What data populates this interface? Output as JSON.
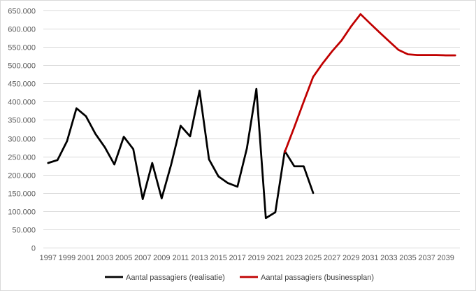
{
  "chart_data": {
    "type": "line",
    "title": "",
    "xlabel": "",
    "ylabel": "",
    "ylim": [
      0,
      650000
    ],
    "y_ticks": [
      {
        "value": 0,
        "label": "0"
      },
      {
        "value": 50000,
        "label": "50.000"
      },
      {
        "value": 100000,
        "label": "100.000"
      },
      {
        "value": 150000,
        "label": "150.000"
      },
      {
        "value": 200000,
        "label": "200.000"
      },
      {
        "value": 250000,
        "label": "250.000"
      },
      {
        "value": 300000,
        "label": "300.000"
      },
      {
        "value": 350000,
        "label": "350.000"
      },
      {
        "value": 400000,
        "label": "400.000"
      },
      {
        "value": 450000,
        "label": "450.000"
      },
      {
        "value": 500000,
        "label": "500.000"
      },
      {
        "value": 550000,
        "label": "550.000"
      },
      {
        "value": 600000,
        "label": "600.000"
      },
      {
        "value": 650000,
        "label": "650.000"
      }
    ],
    "x_range": [
      1997,
      2040
    ],
    "x_tick_labels": [
      "1997",
      "1999",
      "2001",
      "2003",
      "2005",
      "2007",
      "2009",
      "2011",
      "2013",
      "2015",
      "2017",
      "2019",
      "2021",
      "2023",
      "2025",
      "2027",
      "2029",
      "2031",
      "2033",
      "2035",
      "2037",
      "2039"
    ],
    "grid": "horizontal",
    "legend_position": "bottom",
    "series": [
      {
        "name": "Aantal passagiers (realisatie)",
        "color": "#000000",
        "points": [
          [
            1997,
            232000
          ],
          [
            1998,
            240000
          ],
          [
            1999,
            292000
          ],
          [
            2000,
            382000
          ],
          [
            2001,
            360000
          ],
          [
            2002,
            312000
          ],
          [
            2003,
            275000
          ],
          [
            2004,
            228000
          ],
          [
            2005,
            304000
          ],
          [
            2006,
            270000
          ],
          [
            2007,
            133000
          ],
          [
            2008,
            232000
          ],
          [
            2009,
            135000
          ],
          [
            2010,
            228000
          ],
          [
            2011,
            334000
          ],
          [
            2012,
            305000
          ],
          [
            2013,
            430000
          ],
          [
            2014,
            242000
          ],
          [
            2015,
            195000
          ],
          [
            2016,
            177000
          ],
          [
            2017,
            167000
          ],
          [
            2018,
            272000
          ],
          [
            2019,
            435000
          ],
          [
            2020,
            81000
          ],
          [
            2021,
            97000
          ],
          [
            2022,
            265000
          ],
          [
            2023,
            223000
          ],
          [
            2024,
            223000
          ],
          [
            2025,
            150000
          ]
        ]
      },
      {
        "name": "Aantal passagiers (businessplan)",
        "color": "#c00000",
        "points": [
          [
            2022,
            262000
          ],
          [
            2023,
            330000
          ],
          [
            2024,
            400000
          ],
          [
            2025,
            468000
          ],
          [
            2026,
            505000
          ],
          [
            2027,
            538000
          ],
          [
            2028,
            568000
          ],
          [
            2029,
            606000
          ],
          [
            2030,
            640000
          ],
          [
            2031,
            615000
          ],
          [
            2032,
            590000
          ],
          [
            2033,
            566000
          ],
          [
            2034,
            542000
          ],
          [
            2035,
            530000
          ],
          [
            2036,
            528000
          ],
          [
            2037,
            528000
          ],
          [
            2038,
            528000
          ],
          [
            2039,
            527000
          ],
          [
            2040,
            527000
          ]
        ]
      }
    ]
  }
}
